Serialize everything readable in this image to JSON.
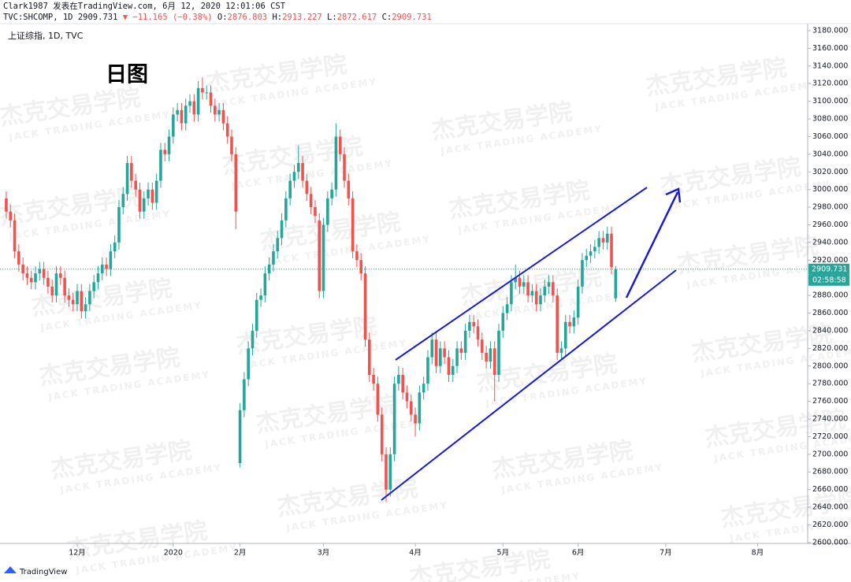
{
  "header": {
    "line1": "Clark1987 发表在TradingView.com, 6月 12, 2020 12:01:06 CST",
    "symbol": "TVC:SHCOMP, 1D",
    "change": "▼ −11.165 (−0.38%)",
    "open_label": "O:",
    "high_label": "H:",
    "low_label": "L:",
    "close_label": "C:",
    "series_name": "上证综指, 1D, TVC",
    "note": "日图",
    "countdown": "02:58:58"
  },
  "watermark": {
    "cn": "杰克交易学院",
    "en": "JACK TRADING ACADEMY"
  },
  "footer": {
    "brand": "TradingView"
  },
  "chart_data": {
    "type": "candlestick",
    "up_color": "#26a69a",
    "down_color": "#ef5350",
    "grid": false,
    "xlim": [
      -1.5,
      192
    ],
    "ylim": [
      2599,
      3188
    ],
    "xticks": [
      {
        "value": 17,
        "label": "12月"
      },
      {
        "value": 40,
        "label": "2020"
      },
      {
        "value": 56,
        "label": "2月"
      },
      {
        "value": 76,
        "label": "3月"
      },
      {
        "value": 98,
        "label": "4月"
      },
      {
        "value": 119,
        "label": "5月"
      },
      {
        "value": 137,
        "label": "6月"
      },
      {
        "value": 158,
        "label": "7月"
      },
      {
        "value": 180,
        "label": "8月"
      }
    ],
    "yticks": [
      {
        "value": 2600,
        "label": "2600.000"
      },
      {
        "value": 2620,
        "label": "2620.000"
      },
      {
        "value": 2640,
        "label": "2640.000"
      },
      {
        "value": 2660,
        "label": "2660.000"
      },
      {
        "value": 2680,
        "label": "2680.000"
      },
      {
        "value": 2700,
        "label": "2700.000"
      },
      {
        "value": 2720,
        "label": "2720.000"
      },
      {
        "value": 2740,
        "label": "2740.000"
      },
      {
        "value": 2760,
        "label": "2760.000"
      },
      {
        "value": 2780,
        "label": "2780.000"
      },
      {
        "value": 2800,
        "label": "2800.000"
      },
      {
        "value": 2820,
        "label": "2820.000"
      },
      {
        "value": 2840,
        "label": "2840.000"
      },
      {
        "value": 2860,
        "label": "2860.000"
      },
      {
        "value": 2880,
        "label": "2880.000"
      },
      {
        "value": 2900,
        "label": "2900.000"
      },
      {
        "value": 2920,
        "label": "2920.000"
      },
      {
        "value": 2940,
        "label": "2940.000"
      },
      {
        "value": 2960,
        "label": "2960.000"
      },
      {
        "value": 2980,
        "label": "2980.000"
      },
      {
        "value": 3000,
        "label": "3000.000"
      },
      {
        "value": 3020,
        "label": "3020.000"
      },
      {
        "value": 3040,
        "label": "3040.000"
      },
      {
        "value": 3060,
        "label": "3060.000"
      },
      {
        "value": 3080,
        "label": "3080.000"
      },
      {
        "value": 3100,
        "label": "3100.000"
      },
      {
        "value": 3120,
        "label": "3120.000"
      },
      {
        "value": 3140,
        "label": "3140.000"
      },
      {
        "value": 3160,
        "label": "3160.000"
      },
      {
        "value": 3180,
        "label": "3180.000"
      }
    ],
    "open": [
      2990,
      2975,
      2965,
      2930,
      2915,
      2905,
      2900,
      2895,
      2905,
      2910,
      2900,
      2890,
      2880,
      2905,
      2900,
      2880,
      2875,
      2870,
      2885,
      2862,
      2870,
      2885,
      2895,
      2905,
      2915,
      2910,
      2930,
      2940,
      2980,
      2995,
      3030,
      3010,
      3000,
      2975,
      2990,
      3000,
      2985,
      3010,
      3045,
      3040,
      3060,
      3085,
      3090,
      3075,
      3095,
      3100,
      3085,
      3115,
      3110,
      3110,
      3095,
      3085,
      3090,
      3075,
      3060,
      3040,
      2690,
      2750,
      2785,
      2820,
      2840,
      2875,
      2880,
      2905,
      2915,
      2930,
      2945,
      2965,
      2990,
      3010,
      3020,
      3030,
      3010,
      2995,
      2980,
      2965,
      2885,
      2960,
      2990,
      3000,
      3060,
      3040,
      3010,
      2990,
      2930,
      2920,
      2905,
      2830,
      2790,
      2780,
      2745,
      2700,
      2660,
      2700,
      2780,
      2790,
      2770,
      2760,
      2745,
      2735,
      2770,
      2780,
      2810,
      2830,
      2800,
      2820,
      2810,
      2790,
      2800,
      2820,
      2815,
      2840,
      2850,
      2845,
      2830,
      2815,
      2805,
      2820,
      2790,
      2840,
      2860,
      2870,
      2895,
      2900,
      2890,
      2895,
      2880,
      2885,
      2870,
      2880,
      2890,
      2895,
      2880,
      2815,
      2820,
      2850,
      2845,
      2855,
      2890,
      2920,
      2925,
      2930,
      2935,
      2945,
      2940,
      2950,
      2876.803
    ],
    "high": [
      2998,
      2983,
      2973,
      2938,
      2923,
      2913,
      2908,
      2913,
      2918,
      2918,
      2908,
      2898,
      2913,
      2913,
      2908,
      2888,
      2883,
      2893,
      2893,
      2878,
      2893,
      2903,
      2913,
      2923,
      2923,
      2938,
      2948,
      2988,
      3003,
      3038,
      3038,
      3018,
      3008,
      2998,
      3008,
      3008,
      3018,
      3053,
      3053,
      3068,
      3093,
      3098,
      3098,
      3103,
      3108,
      3108,
      3123,
      3127,
      3118,
      3118,
      3103,
      3098,
      3098,
      3083,
      3068,
      3048,
      2758,
      2793,
      2828,
      2848,
      2883,
      2888,
      2913,
      2923,
      2938,
      2953,
      2973,
      2998,
      3018,
      3028,
      3050,
      3038,
      3018,
      3003,
      2988,
      2973,
      2968,
      2998,
      3008,
      3075,
      3068,
      3048,
      3018,
      2998,
      2938,
      2928,
      2913,
      2838,
      2798,
      2788,
      2753,
      2708,
      2708,
      2788,
      2800,
      2798,
      2778,
      2768,
      2753,
      2778,
      2788,
      2818,
      2838,
      2838,
      2828,
      2828,
      2818,
      2808,
      2828,
      2828,
      2848,
      2858,
      2858,
      2853,
      2838,
      2823,
      2828,
      2828,
      2848,
      2868,
      2878,
      2903,
      2915,
      2908,
      2903,
      2903,
      2893,
      2893,
      2888,
      2898,
      2903,
      2903,
      2888,
      2828,
      2858,
      2858,
      2863,
      2898,
      2928,
      2933,
      2938,
      2943,
      2953,
      2953,
      2958,
      2958,
      2913.227
    ],
    "low": [
      2967,
      2957,
      2922,
      2907,
      2897,
      2892,
      2887,
      2887,
      2897,
      2892,
      2882,
      2872,
      2872,
      2892,
      2872,
      2867,
      2862,
      2862,
      2854,
      2854,
      2862,
      2877,
      2887,
      2897,
      2902,
      2902,
      2922,
      2932,
      2972,
      2987,
      3002,
      2992,
      2967,
      2967,
      2982,
      2977,
      2977,
      3002,
      3032,
      3032,
      3052,
      3077,
      3067,
      3067,
      3087,
      3077,
      3077,
      3102,
      3102,
      3087,
      3077,
      3077,
      3067,
      3052,
      3032,
      2955,
      2685,
      2742,
      2777,
      2812,
      2832,
      2867,
      2872,
      2897,
      2907,
      2922,
      2937,
      2957,
      2982,
      3002,
      3012,
      3002,
      2987,
      2972,
      2962,
      2877,
      2877,
      2952,
      2982,
      2992,
      3032,
      3002,
      2982,
      2922,
      2912,
      2897,
      2822,
      2782,
      2772,
      2737,
      2692,
      2646,
      2652,
      2692,
      2772,
      2762,
      2752,
      2737,
      2720,
      2727,
      2762,
      2772,
      2802,
      2792,
      2792,
      2802,
      2782,
      2782,
      2792,
      2807,
      2807,
      2832,
      2837,
      2822,
      2807,
      2797,
      2797,
      2760,
      2782,
      2832,
      2852,
      2862,
      2887,
      2882,
      2882,
      2872,
      2872,
      2862,
      2862,
      2872,
      2882,
      2872,
      2807,
      2807,
      2812,
      2837,
      2837,
      2847,
      2882,
      2912,
      2917,
      2922,
      2927,
      2932,
      2932,
      2904,
      2872.617
    ],
    "close": [
      2975,
      2965,
      2930,
      2915,
      2905,
      2900,
      2895,
      2905,
      2910,
      2900,
      2890,
      2880,
      2905,
      2900,
      2880,
      2875,
      2870,
      2885,
      2862,
      2870,
      2885,
      2895,
      2905,
      2915,
      2910,
      2930,
      2940,
      2980,
      2995,
      3030,
      3010,
      3000,
      2975,
      2990,
      3000,
      2985,
      3010,
      3045,
      3040,
      3060,
      3085,
      3090,
      3075,
      3095,
      3100,
      3085,
      3115,
      3110,
      3110,
      3095,
      3085,
      3090,
      3075,
      3060,
      3040,
      2975,
      2750,
      2785,
      2820,
      2840,
      2875,
      2880,
      2905,
      2915,
      2930,
      2945,
      2965,
      2990,
      3010,
      3020,
      3030,
      3010,
      2995,
      2980,
      2970,
      2885,
      2960,
      2990,
      3000,
      3060,
      3040,
      3010,
      2990,
      2930,
      2920,
      2905,
      2830,
      2790,
      2780,
      2745,
      2700,
      2660,
      2700,
      2780,
      2790,
      2770,
      2760,
      2745,
      2735,
      2770,
      2780,
      2810,
      2830,
      2800,
      2820,
      2810,
      2790,
      2800,
      2820,
      2815,
      2840,
      2850,
      2845,
      2830,
      2815,
      2805,
      2820,
      2790,
      2840,
      2860,
      2870,
      2895,
      2900,
      2890,
      2895,
      2880,
      2885,
      2870,
      2880,
      2890,
      2895,
      2880,
      2815,
      2820,
      2850,
      2845,
      2855,
      2890,
      2920,
      2925,
      2930,
      2935,
      2945,
      2940,
      2950,
      2912,
      2909.731
    ]
  }
}
